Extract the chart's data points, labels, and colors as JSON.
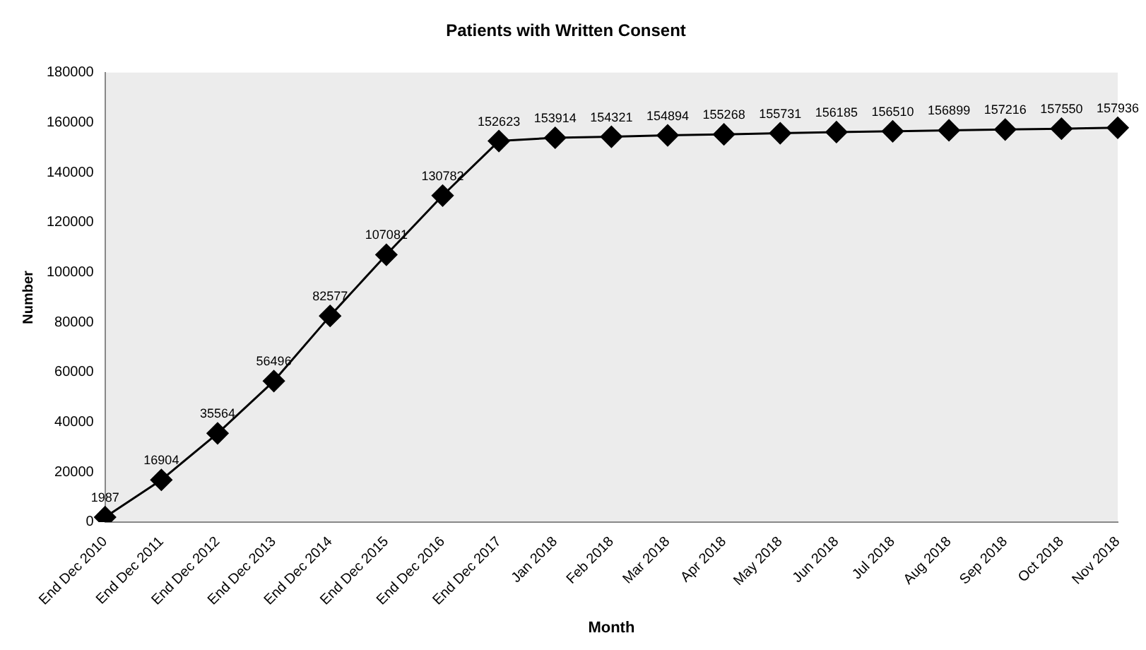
{
  "chart_data": {
    "type": "line",
    "title": "Patients with Written Consent",
    "xlabel": "Month",
    "ylabel": "Number",
    "categories": [
      "End Dec 2010",
      "End Dec 2011",
      "End Dec 2012",
      "End Dec 2013",
      "End Dec 2014",
      "End Dec 2015",
      "End Dec 2016",
      "End Dec 2017",
      "Jan 2018",
      "Feb 2018",
      "Mar 2018",
      "Apr 2018",
      "May 2018",
      "Jun 2018",
      "Jul 2018",
      "Aug 2018",
      "Sep 2018",
      "Oct 2018",
      "Nov 2018"
    ],
    "series": [
      {
        "color": "#000000",
        "values": [
          1987,
          16904,
          35564,
          56496,
          82577,
          107081,
          130782,
          152623,
          153914,
          154321,
          154894,
          155268,
          155731,
          156185,
          156510,
          156899,
          157216,
          157550,
          157936
        ]
      }
    ],
    "ylim": [
      0,
      180000
    ],
    "yticks": [
      0,
      20000,
      40000,
      60000,
      80000,
      100000,
      120000,
      140000,
      160000,
      180000
    ],
    "marker": "diamond",
    "line_style": "solid",
    "data_labels": true,
    "grid": false,
    "legend": false
  }
}
